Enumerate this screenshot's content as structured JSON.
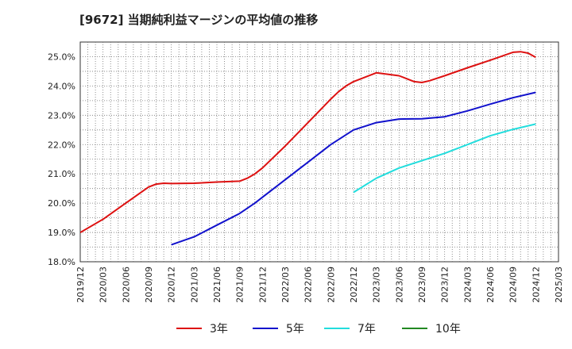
{
  "chart_data": {
    "type": "line",
    "title": "[9672]  当期純利益マージンの平均値の推移",
    "xlabel": "",
    "ylabel": "",
    "ylim": [
      18.0,
      25.5
    ],
    "y_ticks": [
      "18.0%",
      "19.0%",
      "20.0%",
      "21.0%",
      "22.0%",
      "23.0%",
      "24.0%",
      "25.0%"
    ],
    "x_ticks": [
      "2019/12",
      "2020/03",
      "2020/06",
      "2020/09",
      "2020/12",
      "2021/03",
      "2021/06",
      "2021/09",
      "2021/12",
      "2022/03",
      "2022/06",
      "2022/09",
      "2022/12",
      "2023/03",
      "2023/06",
      "2023/09",
      "2023/12",
      "2024/03",
      "2024/06",
      "2024/09",
      "2024/12",
      "2025/03"
    ],
    "grid": true,
    "legend_position": "bottom",
    "series": [
      {
        "name": "3年",
        "color": "#dd1111",
        "x": [
          "2019/12",
          "2020/03",
          "2020/06",
          "2020/09",
          "2020/10",
          "2020/11",
          "2020/12",
          "2021/03",
          "2021/06",
          "2021/09",
          "2021/10",
          "2021/11",
          "2021/12",
          "2022/03",
          "2022/06",
          "2022/09",
          "2022/10",
          "2022/11",
          "2022/12",
          "2023/03",
          "2023/06",
          "2023/08",
          "2023/09",
          "2023/10",
          "2023/12",
          "2024/03",
          "2024/06",
          "2024/09",
          "2024/10",
          "2024/11",
          "2024/12"
        ],
        "values": [
          19.0,
          19.45,
          20.0,
          20.55,
          20.65,
          20.68,
          20.67,
          20.68,
          20.72,
          20.75,
          20.85,
          21.0,
          21.2,
          21.95,
          22.75,
          23.55,
          23.8,
          24.0,
          24.15,
          24.45,
          24.35,
          24.15,
          24.12,
          24.18,
          24.35,
          24.62,
          24.88,
          25.15,
          25.17,
          25.12,
          24.98
        ]
      },
      {
        "name": "5年",
        "color": "#1111cc",
        "x": [
          "2020/12",
          "2021/03",
          "2021/06",
          "2021/09",
          "2021/11",
          "2021/12",
          "2022/03",
          "2022/06",
          "2022/09",
          "2022/12",
          "2023/03",
          "2023/06",
          "2023/09",
          "2023/12",
          "2024/03",
          "2024/06",
          "2024/09",
          "2024/12"
        ],
        "values": [
          18.58,
          18.85,
          19.25,
          19.65,
          20.0,
          20.2,
          20.8,
          21.4,
          22.0,
          22.5,
          22.75,
          22.87,
          22.88,
          22.95,
          23.15,
          23.38,
          23.6,
          23.78
        ]
      },
      {
        "name": "7年",
        "color": "#22dddd",
        "x": [
          "2022/12",
          "2023/03",
          "2023/06",
          "2023/09",
          "2023/12",
          "2024/03",
          "2024/06",
          "2024/09",
          "2024/12"
        ],
        "values": [
          20.37,
          20.85,
          21.2,
          21.45,
          21.7,
          22.0,
          22.3,
          22.52,
          22.7
        ]
      },
      {
        "name": "10年",
        "color": "#228822",
        "x": [],
        "values": []
      }
    ]
  }
}
